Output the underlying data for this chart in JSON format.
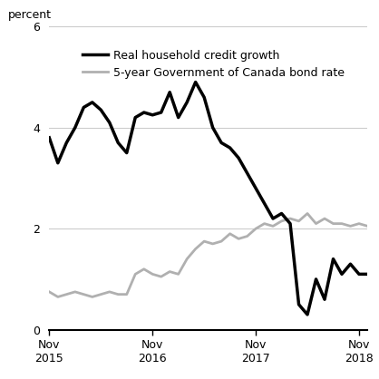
{
  "ylabel": "percent",
  "ylim": [
    0,
    6
  ],
  "yticks": [
    0,
    2,
    4,
    6
  ],
  "xtick_labels": [
    "Nov\n2015",
    "Nov\n2016",
    "Nov\n2017",
    "Nov\n2018"
  ],
  "xtick_positions": [
    0,
    12,
    24,
    36
  ],
  "xlim": [
    0,
    37
  ],
  "credit_growth": {
    "label": "Real household credit growth",
    "color": "#000000",
    "linewidth": 2.5,
    "x": [
      0,
      1,
      2,
      3,
      4,
      5,
      6,
      7,
      8,
      9,
      10,
      11,
      12,
      13,
      14,
      15,
      16,
      17,
      18,
      19,
      20,
      21,
      22,
      23,
      24,
      25,
      26,
      27,
      28,
      29,
      30,
      31,
      32,
      33,
      34,
      35,
      36,
      37
    ],
    "y": [
      3.8,
      3.3,
      3.7,
      4.0,
      4.4,
      4.5,
      4.35,
      4.1,
      3.7,
      3.5,
      4.2,
      4.3,
      4.25,
      4.3,
      4.7,
      4.2,
      4.5,
      4.9,
      4.6,
      4.0,
      3.7,
      3.6,
      3.4,
      3.1,
      2.8,
      2.5,
      2.2,
      2.3,
      2.1,
      0.5,
      0.3,
      1.0,
      0.6,
      1.4,
      1.1,
      1.3,
      1.1,
      1.1
    ]
  },
  "bond_rate": {
    "label": "5-year Government of Canada bond rate",
    "color": "#b0b0b0",
    "linewidth": 2.0,
    "x": [
      0,
      1,
      2,
      3,
      4,
      5,
      6,
      7,
      8,
      9,
      10,
      11,
      12,
      13,
      14,
      15,
      16,
      17,
      18,
      19,
      20,
      21,
      22,
      23,
      24,
      25,
      26,
      27,
      28,
      29,
      30,
      31,
      32,
      33,
      34,
      35,
      36,
      37
    ],
    "y": [
      0.75,
      0.65,
      0.7,
      0.75,
      0.7,
      0.65,
      0.7,
      0.75,
      0.7,
      0.7,
      1.1,
      1.2,
      1.1,
      1.05,
      1.15,
      1.1,
      1.4,
      1.6,
      1.75,
      1.7,
      1.75,
      1.9,
      1.8,
      1.85,
      2.0,
      2.1,
      2.05,
      2.15,
      2.2,
      2.15,
      2.3,
      2.1,
      2.2,
      2.1,
      2.1,
      2.05,
      2.1,
      2.05
    ]
  },
  "grid_color": "#cccccc",
  "grid_linewidth": 0.8,
  "background_color": "#ffffff",
  "tick_fontsize": 9,
  "legend_fontsize": 9
}
